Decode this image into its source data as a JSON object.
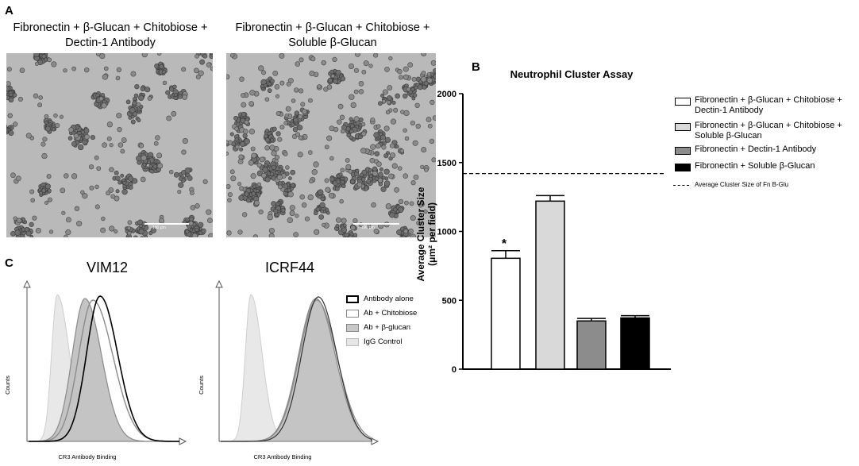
{
  "panels": {
    "a": "A",
    "b": "B",
    "c": "C"
  },
  "panel_a": {
    "left_caption_line1": "Fibronectin + β-Glucan + Chitobiose +",
    "left_caption_line2": "Dectin-1 Antibody",
    "right_caption_line1": "Fibronectin + β-Glucan + Chitobiose +",
    "right_caption_line2": "Soluble β-Glucan",
    "scale_bar_label": "100 μm"
  },
  "panel_c": {
    "left_title": "VIM12",
    "right_title": "ICRF44",
    "ylabel": "Counts",
    "xlabel": "CR3 Antibody Binding",
    "legend": [
      {
        "label": "Antibody alone",
        "color": "#ffffff",
        "border": "#000000"
      },
      {
        "label": "Ab + Chitobiose",
        "color": "#ffffff",
        "border": "#888888"
      },
      {
        "label": "Ab + β-glucan",
        "color": "#c8c8c8",
        "border": "#888888"
      },
      {
        "label": "IgG Control",
        "color": "#e6e6e6",
        "border": "#bbbbbb"
      }
    ]
  },
  "chart_data": {
    "type": "bar",
    "title": "Neutrophil Cluster Assay",
    "ylabel_line1": "Average Cluster Size",
    "ylabel_line2": "(μm² per field)",
    "ylim": [
      0,
      2000
    ],
    "yticks": [
      "0",
      "500",
      "1000",
      "1500",
      "2000"
    ],
    "categories": [
      "Fibronectin + β-Glucan + Chitobiose + Dectin-1 Antibody",
      "Fibronectin + β-Glucan + Chitobiose + Soluble β-Glucan",
      "Fibronectin + Dectin-1 Antibody",
      "Fibronectin + Soluble β-Glucan"
    ],
    "values": [
      805,
      1220,
      350,
      372
    ],
    "errors": [
      55,
      40,
      18,
      16
    ],
    "colors": [
      "#ffffff",
      "#d9d9d9",
      "#8c8c8c",
      "#000000"
    ],
    "significance": [
      "*",
      "",
      "",
      ""
    ],
    "reference_line": {
      "value": 1420,
      "label": "Average Cluster Size of Fn B-Glu"
    },
    "legend": [
      {
        "line1": "Fibronectin + β-Glucan + Chitobiose +",
        "line2": "Dectin-1 Antibody"
      },
      {
        "line1": "Fibronectin + β-Glucan + Chitobiose +",
        "line2": "Soluble β-Glucan"
      },
      {
        "line1": "Fibronectin + Dectin-1 Antibody",
        "line2": ""
      },
      {
        "line1": "Fibronectin + Soluble β-Glucan",
        "line2": ""
      }
    ]
  }
}
